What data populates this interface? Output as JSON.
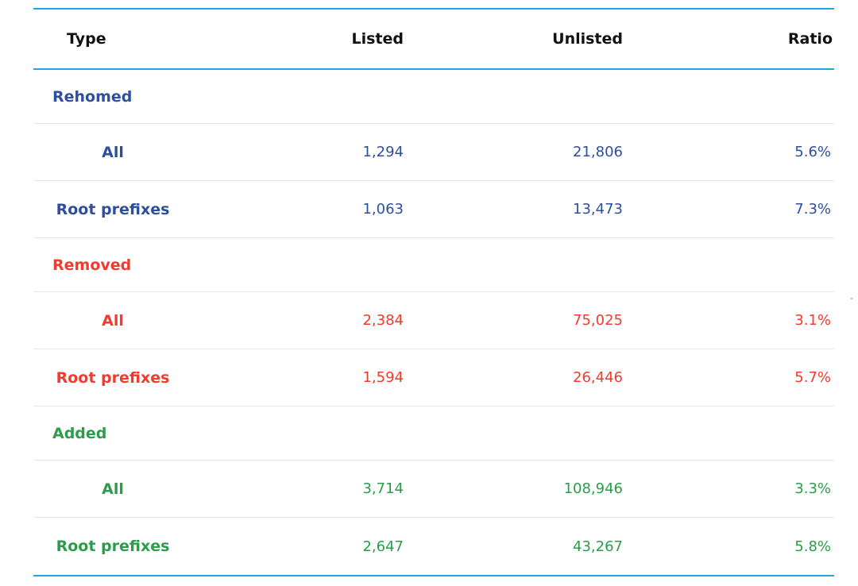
{
  "chart_data": {
    "type": "table",
    "columns": [
      "Type",
      "Listed",
      "Unlisted",
      "Ratio"
    ],
    "groups": [
      {
        "name": "Rehomed",
        "color": "#2e4e9e",
        "rows": [
          {
            "type": "All",
            "listed": "1,294",
            "unlisted": "21,806",
            "ratio": "5.6%"
          },
          {
            "type": "Root prefixes",
            "listed": "1,063",
            "unlisted": "13,473",
            "ratio": "7.3%"
          }
        ]
      },
      {
        "name": "Removed",
        "color": "#f23a2f",
        "rows": [
          {
            "type": "All",
            "listed": "2,384",
            "unlisted": "75,025",
            "ratio": "3.1%"
          },
          {
            "type": "Root prefixes",
            "listed": "1,594",
            "unlisted": "26,446",
            "ratio": "5.7%"
          }
        ]
      },
      {
        "name": "Added",
        "color": "#2a9c4a",
        "rows": [
          {
            "type": "All",
            "listed": "3,714",
            "unlisted": "108,946",
            "ratio": "3.3%"
          },
          {
            "type": "Root prefixes",
            "listed": "2,647",
            "unlisted": "43,267",
            "ratio": "5.8%"
          }
        ]
      }
    ]
  }
}
